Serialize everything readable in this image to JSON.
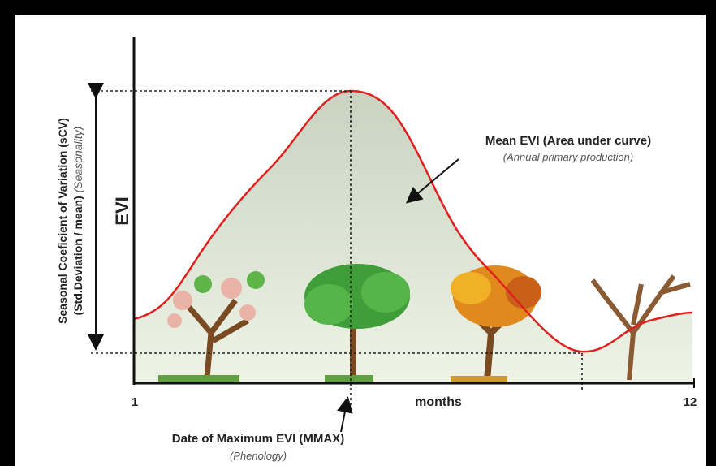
{
  "y_axis": {
    "label": "EVI",
    "description": "Seasonal Coeficient of Variation (sCV)",
    "formula": "(Std.Deviation / mean)",
    "note": "(Seasonality)"
  },
  "x_axis": {
    "start": "1",
    "label": "months",
    "end": "12"
  },
  "annotations": {
    "area": {
      "title": "Mean EVI (Area under curve)",
      "subtitle": "(Annual primary production)"
    },
    "peak": {
      "title": "Date of Maximum EVI (MMAX)",
      "subtitle": "(Phenology)"
    }
  }
}
